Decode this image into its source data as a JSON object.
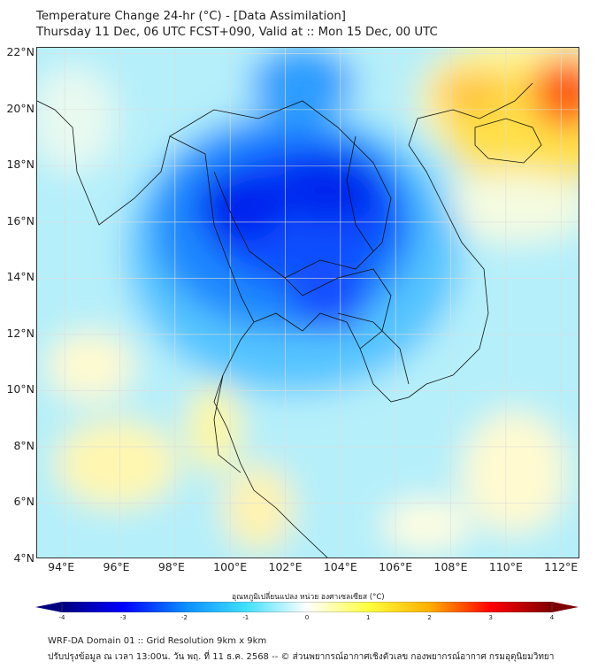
{
  "header": {
    "title": "Temperature Change 24-hr (°C) - [Data Assimilation]",
    "subtitle": "Thursday 11 Dec, 06 UTC FCST+090, Valid at :: Mon 15 Dec, 00 UTC"
  },
  "map": {
    "lon_range": [
      93,
      112.7
    ],
    "lat_range": [
      4,
      22.2
    ],
    "lon_ticks": [
      {
        "v": 94,
        "label": "94°E"
      },
      {
        "v": 96,
        "label": "96°E"
      },
      {
        "v": 98,
        "label": "98°E"
      },
      {
        "v": 100,
        "label": "100°E"
      },
      {
        "v": 102,
        "label": "102°E"
      },
      {
        "v": 104,
        "label": "104°E"
      },
      {
        "v": 106,
        "label": "106°E"
      },
      {
        "v": 108,
        "label": "108°E"
      },
      {
        "v": 110,
        "label": "110°E"
      },
      {
        "v": 112,
        "label": "112°E"
      }
    ],
    "lat_ticks": [
      {
        "v": 22,
        "label": "22°N"
      },
      {
        "v": 20,
        "label": "20°N"
      },
      {
        "v": 18,
        "label": "18°N"
      },
      {
        "v": 16,
        "label": "16°N"
      },
      {
        "v": 14,
        "label": "14°N"
      },
      {
        "v": 12,
        "label": "12°N"
      },
      {
        "v": 10,
        "label": "10°N"
      },
      {
        "v": 8,
        "label": "8°N"
      },
      {
        "v": 6,
        "label": "6°N"
      },
      {
        "v": 4,
        "label": "4°N"
      }
    ]
  },
  "colorbar": {
    "label": "อุณหภูมิเปลี่ยนแปลง หน่วย องศาเซลเซียส (°C)",
    "range": [
      -4,
      4
    ],
    "ticks": [
      "-4",
      "-3",
      "-2",
      "-1",
      "0",
      "1",
      "2",
      "3",
      "4"
    ],
    "colors": [
      "#00007f",
      "#0000ff",
      "#0a8cff",
      "#3fe0ff",
      "#ffffff",
      "#ffff40",
      "#ffb000",
      "#ff0000",
      "#7f0000"
    ]
  },
  "footer": {
    "line1": "WRF-DA Domain 01 :: Grid Resolution 9km x 9km",
    "line2": "ปรับปรุงข้อมูล ณ เวลา 13:00น. วัน พฤ. ที่ 11 ธ.ค. 2568 -- © ส่วนพยากรณ์อากาศเชิงตัวเลข กองพยากรณ์อากาศ กรมอุตุนิยมวิทยา"
  }
}
